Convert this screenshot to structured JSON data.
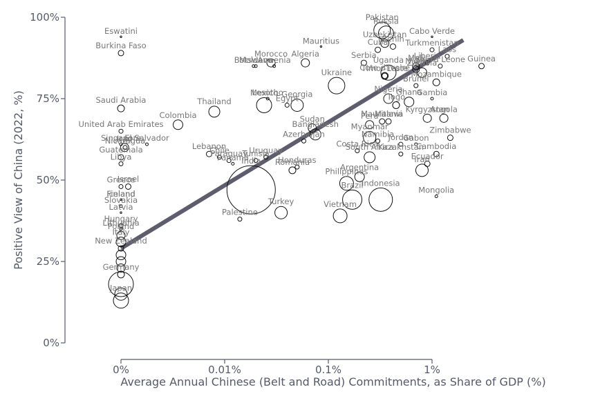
{
  "chart_data": {
    "type": "scatter",
    "title": "",
    "xlabel": "Average Annual Chinese (Belt and Road) Commitments, as Share of GDP (%)",
    "ylabel": "Positive View of China (2022, %)",
    "x_scale": "pseudo-log",
    "x_ticks": [
      0,
      0.01,
      0.1,
      1
    ],
    "x_tick_labels": [
      "0%",
      "0.01%",
      "0.1%",
      "1%"
    ],
    "y_ticks": [
      0,
      25,
      50,
      75,
      100
    ],
    "y_tick_labels": [
      "0%",
      "25%",
      "50%",
      "75%",
      "100%"
    ],
    "ylim": [
      0,
      100
    ],
    "grid": false,
    "legend": "none",
    "trend_line": {
      "x": [
        0,
        2
      ],
      "y": [
        29,
        93
      ],
      "color": "#5d5d6e"
    },
    "points": [
      {
        "label": "Eswatini",
        "x": 0,
        "y": 94,
        "size": 1
      },
      {
        "label": "Burkina Faso",
        "x": 0,
        "y": 89,
        "size": 4
      },
      {
        "label": "Saudi Arabia",
        "x": 0,
        "y": 72,
        "size": 5
      },
      {
        "label": "United Arab Emirates",
        "x": 0,
        "y": 65,
        "size": 3
      },
      {
        "label": "Singapore",
        "x": 0,
        "y": 61,
        "size": 2
      },
      {
        "label": "Guatemala",
        "x": 0,
        "y": 57,
        "size": 4
      },
      {
        "label": "Libya",
        "x": 0,
        "y": 55,
        "size": 3
      },
      {
        "label": "Greece",
        "x": 0,
        "y": 48,
        "size": 3
      },
      {
        "label": "Finland",
        "x": 0,
        "y": 44,
        "size": 1
      },
      {
        "label": "Iceland",
        "x": 0,
        "y": 44,
        "size": 1
      },
      {
        "label": "Slovakia",
        "x": 0,
        "y": 42,
        "size": 2
      },
      {
        "label": "Latvia",
        "x": 0,
        "y": 40,
        "size": 1
      },
      {
        "label": "Hungary",
        "x": 0,
        "y": 36,
        "size": 3
      },
      {
        "label": "Lithuania",
        "x": 0,
        "y": 35,
        "size": 2
      },
      {
        "label": "Poland",
        "x": 0,
        "y": 33,
        "size": 6
      },
      {
        "label": "Italy",
        "x": 0,
        "y": 31,
        "size": 7
      },
      {
        "label": "New Zealand",
        "x": 0,
        "y": 29,
        "size": 4
      },
      {
        "label": "",
        "x": 0,
        "y": 27,
        "size": 7
      },
      {
        "label": "",
        "x": 0,
        "y": 25,
        "size": 7
      },
      {
        "label": "",
        "x": 0,
        "y": 23,
        "size": 6
      },
      {
        "label": "",
        "x": 0,
        "y": 21,
        "size": 5
      },
      {
        "label": "Germany",
        "x": 0,
        "y": 18,
        "size": 18
      },
      {
        "label": "",
        "x": 0,
        "y": 15,
        "size": 9
      },
      {
        "label": "Japan",
        "x": 0,
        "y": 13,
        "size": 11
      },
      {
        "label": "Nicaragua",
        "x": 0.0004,
        "y": 60,
        "size": 3
      },
      {
        "label": "Iraq",
        "x": 0.00035,
        "y": 60,
        "size": 6
      },
      {
        "label": "Israel",
        "x": 0.0007,
        "y": 48,
        "size": 4
      },
      {
        "label": "Thailand",
        "x": 0.009,
        "y": 71,
        "size": 8
      },
      {
        "label": "Colombia",
        "x": 0.0055,
        "y": 67,
        "size": 7
      },
      {
        "label": "El Salvador",
        "x": 0.0025,
        "y": 61,
        "size": 2
      },
      {
        "label": "Lebanon",
        "x": 0.0085,
        "y": 58,
        "size": 4
      },
      {
        "label": "Chile",
        "x": 0.0095,
        "y": 57,
        "size": 3
      },
      {
        "label": "Paraguay",
        "x": 0.011,
        "y": 56,
        "size": 3
      },
      {
        "label": "Panama",
        "x": 0.012,
        "y": 55,
        "size": 2
      },
      {
        "label": "Palestine",
        "x": 0.014,
        "y": 38,
        "size": 3
      },
      {
        "label": "India",
        "x": 0.018,
        "y": 47,
        "size": 35
      },
      {
        "label": "Tunisia",
        "x": 0.02,
        "y": 56,
        "size": 3
      },
      {
        "label": "Uruguay",
        "x": 0.025,
        "y": 57,
        "size": 3
      },
      {
        "label": "Moldova",
        "x": 0.02,
        "y": 85,
        "size": 2
      },
      {
        "label": "Botswana",
        "x": 0.019,
        "y": 85,
        "size": 2
      },
      {
        "label": "Morocco",
        "x": 0.028,
        "y": 86,
        "size": 6
      },
      {
        "label": "Armenia",
        "x": 0.03,
        "y": 85,
        "size": 2
      },
      {
        "label": "Mexico",
        "x": 0.024,
        "y": 73,
        "size": 11
      },
      {
        "label": "Lesotho",
        "x": 0.026,
        "y": 75,
        "size": 2
      },
      {
        "label": "Egypt",
        "x": 0.04,
        "y": 73,
        "size": 3
      },
      {
        "label": "Georgia",
        "x": 0.05,
        "y": 73,
        "size": 9
      },
      {
        "label": "Algeria",
        "x": 0.06,
        "y": 86,
        "size": 6
      },
      {
        "label": "Mauritius",
        "x": 0.085,
        "y": 91,
        "size": 1
      },
      {
        "label": "Azerbaijan",
        "x": 0.058,
        "y": 62,
        "size": 3
      },
      {
        "label": "Sudan",
        "x": 0.07,
        "y": 66,
        "size": 6
      },
      {
        "label": "Bangladesh",
        "x": 0.075,
        "y": 64,
        "size": 8
      },
      {
        "label": "Honduras",
        "x": 0.05,
        "y": 54,
        "size": 3
      },
      {
        "label": "Romania",
        "x": 0.045,
        "y": 53,
        "size": 5
      },
      {
        "label": "Turkey",
        "x": 0.035,
        "y": 40,
        "size": 9
      },
      {
        "label": "Philippines",
        "x": 0.15,
        "y": 49,
        "size": 10
      },
      {
        "label": "Brazil",
        "x": 0.17,
        "y": 44,
        "size": 14
      },
      {
        "label": "Vietnam",
        "x": 0.13,
        "y": 39,
        "size": 10
      },
      {
        "label": "Indonesia",
        "x": 0.32,
        "y": 44,
        "size": 17
      },
      {
        "label": "Argentina",
        "x": 0.2,
        "y": 51,
        "size": 7
      },
      {
        "label": "South Africa",
        "x": 0.25,
        "y": 57,
        "size": 8
      },
      {
        "label": "Costa Rica",
        "x": 0.19,
        "y": 59,
        "size": 3
      },
      {
        "label": "Myanmar",
        "x": 0.25,
        "y": 63,
        "size": 9
      },
      {
        "label": "Namibia",
        "x": 0.3,
        "y": 62,
        "size": 3
      },
      {
        "label": "Peru",
        "x": 0.25,
        "y": 67,
        "size": 6
      },
      {
        "label": "Ukraine",
        "x": 0.12,
        "y": 79,
        "size": 12
      },
      {
        "label": "Mauritania",
        "x": 0.33,
        "y": 68,
        "size": 4
      },
      {
        "label": "Malawi",
        "x": 0.38,
        "y": 68,
        "size": 4
      },
      {
        "label": "Togo",
        "x": 0.45,
        "y": 73,
        "size": 5
      },
      {
        "label": "Nigeria",
        "x": 0.38,
        "y": 75,
        "size": 7
      },
      {
        "label": "Cote d'Ivoire",
        "x": 0.35,
        "y": 82,
        "size": 5
      },
      {
        "label": "Timor-Leste",
        "x": 0.35,
        "y": 82,
        "size": 4
      },
      {
        "label": "Serbia",
        "x": 0.22,
        "y": 86,
        "size": 4
      },
      {
        "label": "Uganda",
        "x": 0.38,
        "y": 83,
        "size": 11
      },
      {
        "label": "Cuba",
        "x": 0.3,
        "y": 90,
        "size": 4
      },
      {
        "label": "Uzbekistan",
        "x": 0.35,
        "y": 92,
        "size": 6
      },
      {
        "label": "Pakistan",
        "x": 0.33,
        "y": 96,
        "size": 12
      },
      {
        "label": "Russia",
        "x": 0.36,
        "y": 95,
        "size": 11
      },
      {
        "label": "Benin",
        "x": 0.42,
        "y": 91,
        "size": 4
      },
      {
        "label": "Niger",
        "x": 0.7,
        "y": 84,
        "size": 5
      },
      {
        "label": "Mali",
        "x": 0.7,
        "y": 85,
        "size": 5
      },
      {
        "label": "Zambia",
        "x": 0.8,
        "y": 83,
        "size": 7
      },
      {
        "label": "Brunei",
        "x": 0.7,
        "y": 79,
        "size": 3
      },
      {
        "label": "Liberia",
        "x": 0.9,
        "y": 86,
        "size": 3
      },
      {
        "label": "Cabo Verde",
        "x": 1.0,
        "y": 94,
        "size": 1
      },
      {
        "label": "Turkmenistan",
        "x": 1.0,
        "y": 90,
        "size": 3
      },
      {
        "label": "Laos",
        "x": 1.4,
        "y": 88,
        "size": 3
      },
      {
        "label": "Sierra Leone",
        "x": 1.2,
        "y": 85,
        "size": 3
      },
      {
        "label": "Guinea",
        "x": 3.0,
        "y": 85,
        "size": 4
      },
      {
        "label": "Mozambique",
        "x": 1.1,
        "y": 80,
        "size": 5
      },
      {
        "label": "Gambia",
        "x": 1.0,
        "y": 75,
        "size": 2
      },
      {
        "label": "Ghana",
        "x": 0.6,
        "y": 74,
        "size": 7
      },
      {
        "label": "Kyrgyzstan",
        "x": 0.9,
        "y": 69,
        "size": 6
      },
      {
        "label": "Angola",
        "x": 1.3,
        "y": 69,
        "size": 6
      },
      {
        "label": "Zimbabwe",
        "x": 1.5,
        "y": 63,
        "size": 4
      },
      {
        "label": "Jordan",
        "x": 0.5,
        "y": 61,
        "size": 3
      },
      {
        "label": "Gabon",
        "x": 0.7,
        "y": 61,
        "size": 2
      },
      {
        "label": "Kazakhstan",
        "x": 0.5,
        "y": 58,
        "size": 3
      },
      {
        "label": "Cambodia",
        "x": 1.1,
        "y": 58,
        "size": 4
      },
      {
        "label": "Ecuador",
        "x": 0.9,
        "y": 55,
        "size": 4
      },
      {
        "label": "Iran",
        "x": 0.8,
        "y": 53,
        "size": 9
      },
      {
        "label": "Mongolia",
        "x": 1.1,
        "y": 45,
        "size": 2
      }
    ]
  }
}
